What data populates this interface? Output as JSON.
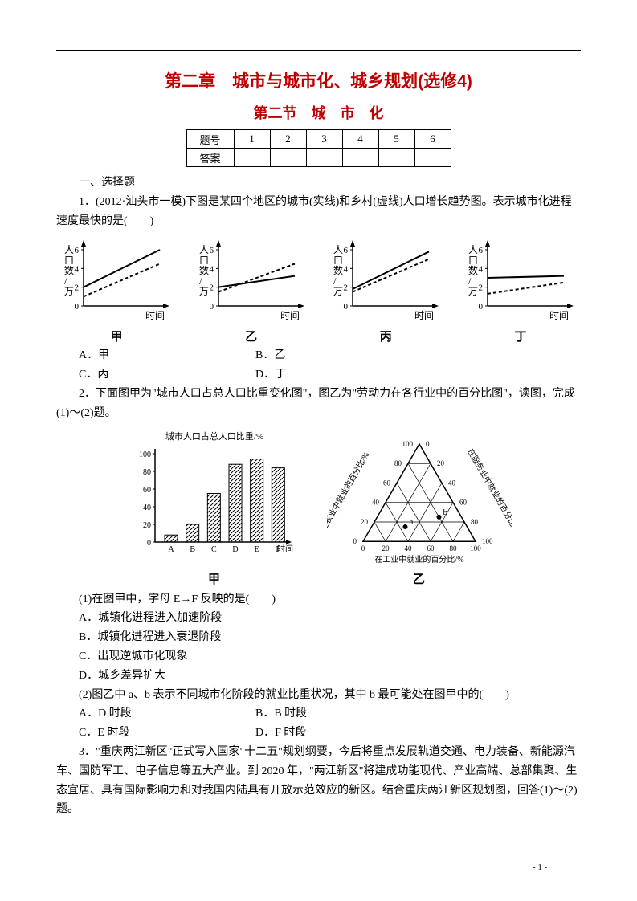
{
  "title1": "第二章　城市与城市化、城乡规划(选修4)",
  "title2": "第二节　城　市　化",
  "ansTable": {
    "r1": [
      "题号",
      "1",
      "2",
      "3",
      "4",
      "5",
      "6"
    ],
    "r2": [
      "答案",
      "",
      "",
      "",
      "",
      "",
      ""
    ]
  },
  "sec1": "一、选择题",
  "q1": "1．(2012·汕头市一模)下图是某四个地区的城市(实线)和乡村(虚线)人口增长趋势图。表示城市化进程速度最快的是(　　)",
  "plots": {
    "ylabel": "人口数/万",
    "xlabel": "时间",
    "yticks": [
      0,
      2,
      4,
      6
    ],
    "labels": [
      "甲",
      "乙",
      "丙",
      "丁"
    ],
    "series": [
      {
        "solid": [
          [
            0,
            2
          ],
          [
            10,
            6
          ]
        ],
        "dashed": [
          [
            0,
            1
          ],
          [
            10,
            4.5
          ]
        ]
      },
      {
        "solid": [
          [
            0,
            2
          ],
          [
            10,
            3.2
          ]
        ],
        "dashed": [
          [
            0,
            1.5
          ],
          [
            10,
            4.5
          ]
        ]
      },
      {
        "solid": [
          [
            0,
            1.8
          ],
          [
            10,
            5.8
          ]
        ],
        "dashed": [
          [
            0,
            1.5
          ],
          [
            10,
            5
          ]
        ]
      },
      {
        "solid": [
          [
            0,
            3
          ],
          [
            10,
            3.2
          ]
        ],
        "dashed": [
          [
            0,
            1.3
          ],
          [
            10,
            2.5
          ]
        ]
      }
    ],
    "axis_color": "#000",
    "line_width": 2,
    "dashed_pattern": "4,3",
    "font_size": 12
  },
  "q1opts": {
    "a": "A．甲",
    "b": "B．乙",
    "c": "C．丙",
    "d": "D．丁"
  },
  "q2": "2．下面图甲为\"城市人口占总人口比重变化图\"，图乙为\"劳动力在各行业中的百分比图\"，读图，完成(1)～(2)题。",
  "barChart": {
    "title": "城市人口占总人口比重/%",
    "cats": [
      "A",
      "B",
      "C",
      "D",
      "E",
      "F"
    ],
    "vals": [
      8,
      20,
      55,
      88,
      94,
      84
    ],
    "yticks": [
      0,
      20,
      40,
      60,
      80,
      100
    ],
    "xlabel": "时间",
    "bar_color": "url(#hatch)",
    "axis_color": "#000",
    "font_size": 11,
    "label": "甲"
  },
  "tri": {
    "left": "在农业中就业的百分比/%",
    "right": "在服务业中就业的百分比/%",
    "bottom": "在工业中就业的百分比/%",
    "ticks": [
      0,
      20,
      40,
      60,
      80,
      100
    ],
    "points": {
      "a": [
        30,
        55
      ],
      "b": [
        55,
        20
      ]
    },
    "label": "乙",
    "axis_color": "#000",
    "font_size": 10
  },
  "q2_1": "(1)在图甲中，字母 E→F 反映的是(　　)",
  "q2_1o": {
    "a": "A．城镇化进程进入加速阶段",
    "b": "B．城镇化进程进入衰退阶段",
    "c": "C．出现逆城市化现象",
    "d": "D．城乡差异扩大"
  },
  "q2_2": "(2)图乙中 a、b 表示不同城市化阶段的就业比重状况，其中 b 最可能处在图甲中的(　　)",
  "q2_2o": {
    "a": "A．D 时段",
    "b": "B．B 时段",
    "c": "C．E 时段",
    "d": "D．F 时段"
  },
  "q3": "3．\"重庆两江新区\"正式写入国家\"十二五\"规划纲要，今后将重点发展轨道交通、电力装备、新能源汽车、国防军工、电子信息等五大产业。到 2020 年，\"两江新区\"将建成功能现代、产业高端、总部集聚、生态宜居、具有国际影响力和对我国内陆具有开放示范效应的新区。结合重庆两江新区规划图，回答(1)～(2)题。",
  "pageNum": "- 1 -"
}
